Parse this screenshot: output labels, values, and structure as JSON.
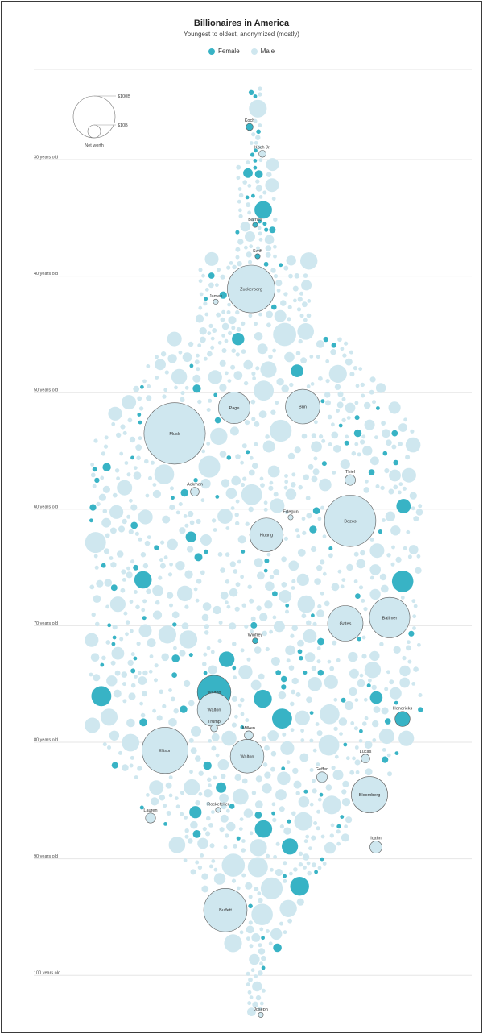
{
  "colors": {
    "female": "#38b3c5",
    "male": "#cfe7ef",
    "outline": "#5a5a5a",
    "gridline": "#e6e6e6"
  },
  "chart_data": {
    "type": "scatter",
    "title": "Billionaires in America",
    "subtitle": "Youngest to oldest, anonymized (mostly)",
    "legend": [
      {
        "label": "Female",
        "color": "#38b3c5"
      },
      {
        "label": "Male",
        "color": "#cfe7ef"
      }
    ],
    "y_axis": {
      "unit": "age (years)",
      "range": [
        25,
        105
      ],
      "ticks": [
        {
          "value": 30,
          "label": "30 years old"
        },
        {
          "value": 40,
          "label": "40 years old"
        },
        {
          "value": 50,
          "label": "50 years old"
        },
        {
          "value": 60,
          "label": "60 years old"
        },
        {
          "value": 70,
          "label": "70 years old"
        },
        {
          "value": 80,
          "label": "80 years old"
        },
        {
          "value": 90,
          "label": "90 years old"
        },
        {
          "value": 100,
          "label": "100 years old"
        }
      ]
    },
    "size_key": {
      "labels": [
        "$100B",
        "$10B",
        "Net worth"
      ]
    },
    "labeled_points": [
      {
        "name": "Koch",
        "age": 27.2,
        "gender": "female",
        "net_worth_b": 4
      },
      {
        "name": "Koch Jr.",
        "age": 29.5,
        "gender": "male",
        "net_worth_b": 4
      },
      {
        "name": "Barnes",
        "age": 35.6,
        "gender": "female",
        "net_worth_b": 1.5
      },
      {
        "name": "Swift",
        "age": 38.3,
        "gender": "female",
        "net_worth_b": 1.2
      },
      {
        "name": "James",
        "age": 42.2,
        "gender": "male",
        "net_worth_b": 1.2
      },
      {
        "name": "Zuckerberg",
        "age": 41.1,
        "gender": "male",
        "net_worth_b": 180
      },
      {
        "name": "Page",
        "age": 51.3,
        "gender": "male",
        "net_worth_b": 80
      },
      {
        "name": "Brin",
        "age": 51.2,
        "gender": "male",
        "net_worth_b": 95
      },
      {
        "name": "Musk",
        "age": 53.5,
        "gender": "male",
        "net_worth_b": 300
      },
      {
        "name": "Thiel",
        "age": 57.5,
        "gender": "male",
        "net_worth_b": 9
      },
      {
        "name": "Ackman",
        "age": 58.5,
        "gender": "male",
        "net_worth_b": 6
      },
      {
        "name": "Bezos",
        "age": 61.0,
        "gender": "male",
        "net_worth_b": 210
      },
      {
        "name": "Ertegun",
        "age": 60.7,
        "gender": "male",
        "net_worth_b": 2
      },
      {
        "name": "Huang",
        "age": 62.2,
        "gender": "male",
        "net_worth_b": 90
      },
      {
        "name": "Gates",
        "age": 69.8,
        "gender": "male",
        "net_worth_b": 100
      },
      {
        "name": "Ballmer",
        "age": 69.3,
        "gender": "male",
        "net_worth_b": 130
      },
      {
        "name": "Winfrey",
        "age": 71.3,
        "gender": "female",
        "net_worth_b": 2.5
      },
      {
        "name": "Walton",
        "age": 75.7,
        "gender": "female",
        "net_worth_b": 90
      },
      {
        "name": "Walton",
        "age": 77.2,
        "gender": "male",
        "net_worth_b": 90
      },
      {
        "name": "Hendricks",
        "age": 78.0,
        "gender": "female",
        "net_worth_b": 18
      },
      {
        "name": "Trump",
        "age": 78.8,
        "gender": "male",
        "net_worth_b": 4
      },
      {
        "name": "Icahn",
        "age": 89.0,
        "gender": "male",
        "net_worth_b": 12
      },
      {
        "name": "Milken",
        "age": 79.4,
        "gender": "male",
        "net_worth_b": 6
      },
      {
        "name": "Ellison",
        "age": 80.7,
        "gender": "male",
        "net_worth_b": 170
      },
      {
        "name": "Walton",
        "age": 81.2,
        "gender": "male",
        "net_worth_b": 90
      },
      {
        "name": "Lucas",
        "age": 81.4,
        "gender": "male",
        "net_worth_b": 6
      },
      {
        "name": "Geffen",
        "age": 83.0,
        "gender": "male",
        "net_worth_b": 9
      },
      {
        "name": "Bloomberg",
        "age": 84.5,
        "gender": "male",
        "net_worth_b": 105
      },
      {
        "name": "Rockefeller",
        "age": 85.8,
        "gender": "male",
        "net_worth_b": 1.2
      },
      {
        "name": "Lauren",
        "age": 86.5,
        "gender": "male",
        "net_worth_b": 8
      },
      {
        "name": "Buffett",
        "age": 94.4,
        "gender": "male",
        "net_worth_b": 150
      },
      {
        "name": "Joseph",
        "age": 103.4,
        "gender": "male",
        "net_worth_b": 2
      }
    ],
    "unlabeled_points_note": ""
  }
}
